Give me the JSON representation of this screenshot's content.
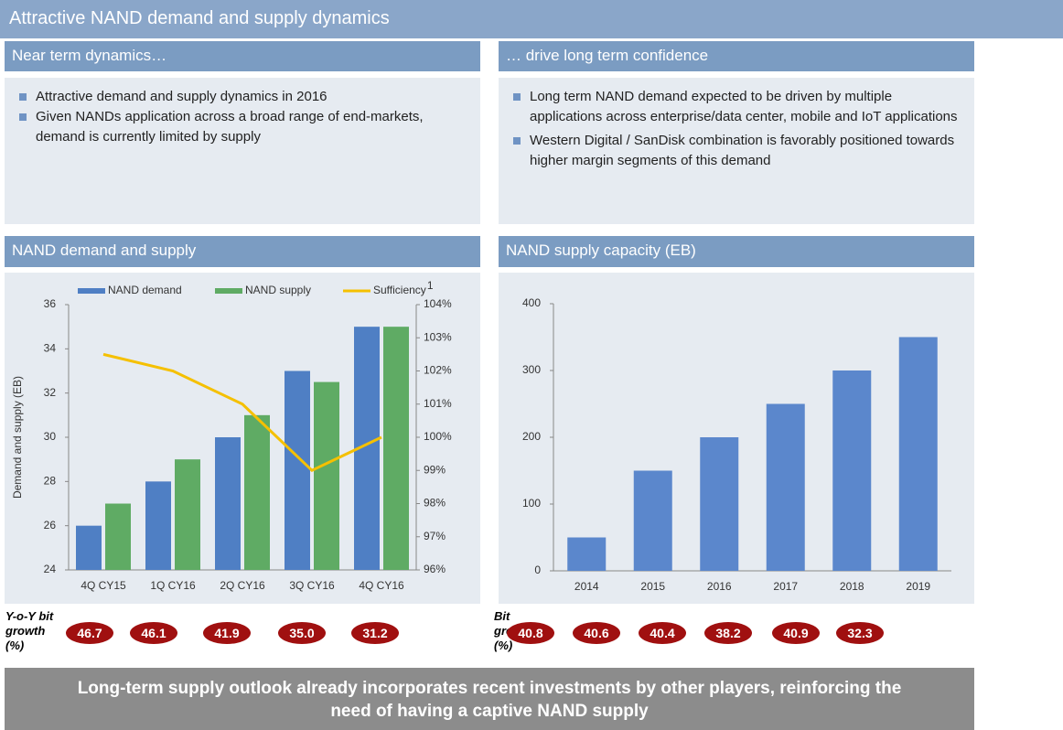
{
  "title": "Attractive NAND demand and supply dynamics",
  "left_header": "Near term dynamics…",
  "right_header": "… drive long term confidence",
  "left_bullets": [
    "Attractive demand and supply dynamics in 2016",
    "Given NANDs application across a broad range of end-markets, demand is currently limited by supply"
  ],
  "right_bullets": [
    "Long term NAND demand expected to be driven by multiple applications across enterprise/data center, mobile and IoT applications",
    "Western Digital / SanDisk combination is favorably positioned towards higher margin segments of this demand"
  ],
  "chart_data": [
    {
      "type": "bar",
      "title": "NAND demand and supply",
      "ylabel": "Demand and supply (EB)",
      "footnote_marker": "1",
      "categories": [
        "4Q CY15",
        "1Q CY16",
        "2Q CY16",
        "3Q CY16",
        "4Q CY16"
      ],
      "series": [
        {
          "name": "NAND demand",
          "color": "#4f7fc4",
          "values": [
            26,
            28,
            30,
            33,
            35
          ]
        },
        {
          "name": "NAND supply",
          "color": "#5fab64",
          "values": [
            27,
            29,
            31,
            32.5,
            35
          ]
        },
        {
          "name": "Sufficiency",
          "color": "#f5c000",
          "type": "line",
          "axis": "y2",
          "values": [
            102.5,
            102,
            101,
            99,
            100
          ]
        }
      ],
      "ylim": [
        24,
        36
      ],
      "yticks": [
        24,
        26,
        28,
        30,
        32,
        34,
        36
      ],
      "y2lim": [
        96,
        104
      ],
      "y2ticks": [
        {
          "value": 96,
          "label": "96%"
        },
        {
          "value": 97,
          "label": "97%"
        },
        {
          "value": 98,
          "label": "98%"
        },
        {
          "value": 99,
          "label": "99%"
        },
        {
          "value": 100,
          "label": "100%"
        },
        {
          "value": 101,
          "label": "101%"
        },
        {
          "value": 102,
          "label": "102%"
        },
        {
          "value": 103,
          "label": "103%"
        },
        {
          "value": 104,
          "label": "104%"
        }
      ],
      "legend": "top"
    },
    {
      "type": "bar",
      "title": "NAND supply capacity (EB)",
      "color": "#5b87cc",
      "categories": [
        "2014",
        "2015",
        "2016",
        "2017",
        "2018",
        "2019"
      ],
      "values": [
        50,
        150,
        200,
        250,
        300,
        350
      ],
      "ylim": [
        0,
        400
      ],
      "yticks": [
        0,
        100,
        200,
        300,
        400
      ]
    }
  ],
  "growth_left": {
    "label": "Y-o-Y bit growth (%)",
    "items": [
      "46.7",
      "46.1",
      "41.9",
      "35.0",
      "31.2"
    ]
  },
  "growth_right": {
    "label": "Bit growth (%)",
    "items": [
      "40.8",
      "40.6",
      "40.4",
      "38.2",
      "40.9",
      "32.3"
    ]
  },
  "footer": "Long-term supply outlook already incorporates recent investments by other players, reinforcing the need of having a captive NAND supply"
}
